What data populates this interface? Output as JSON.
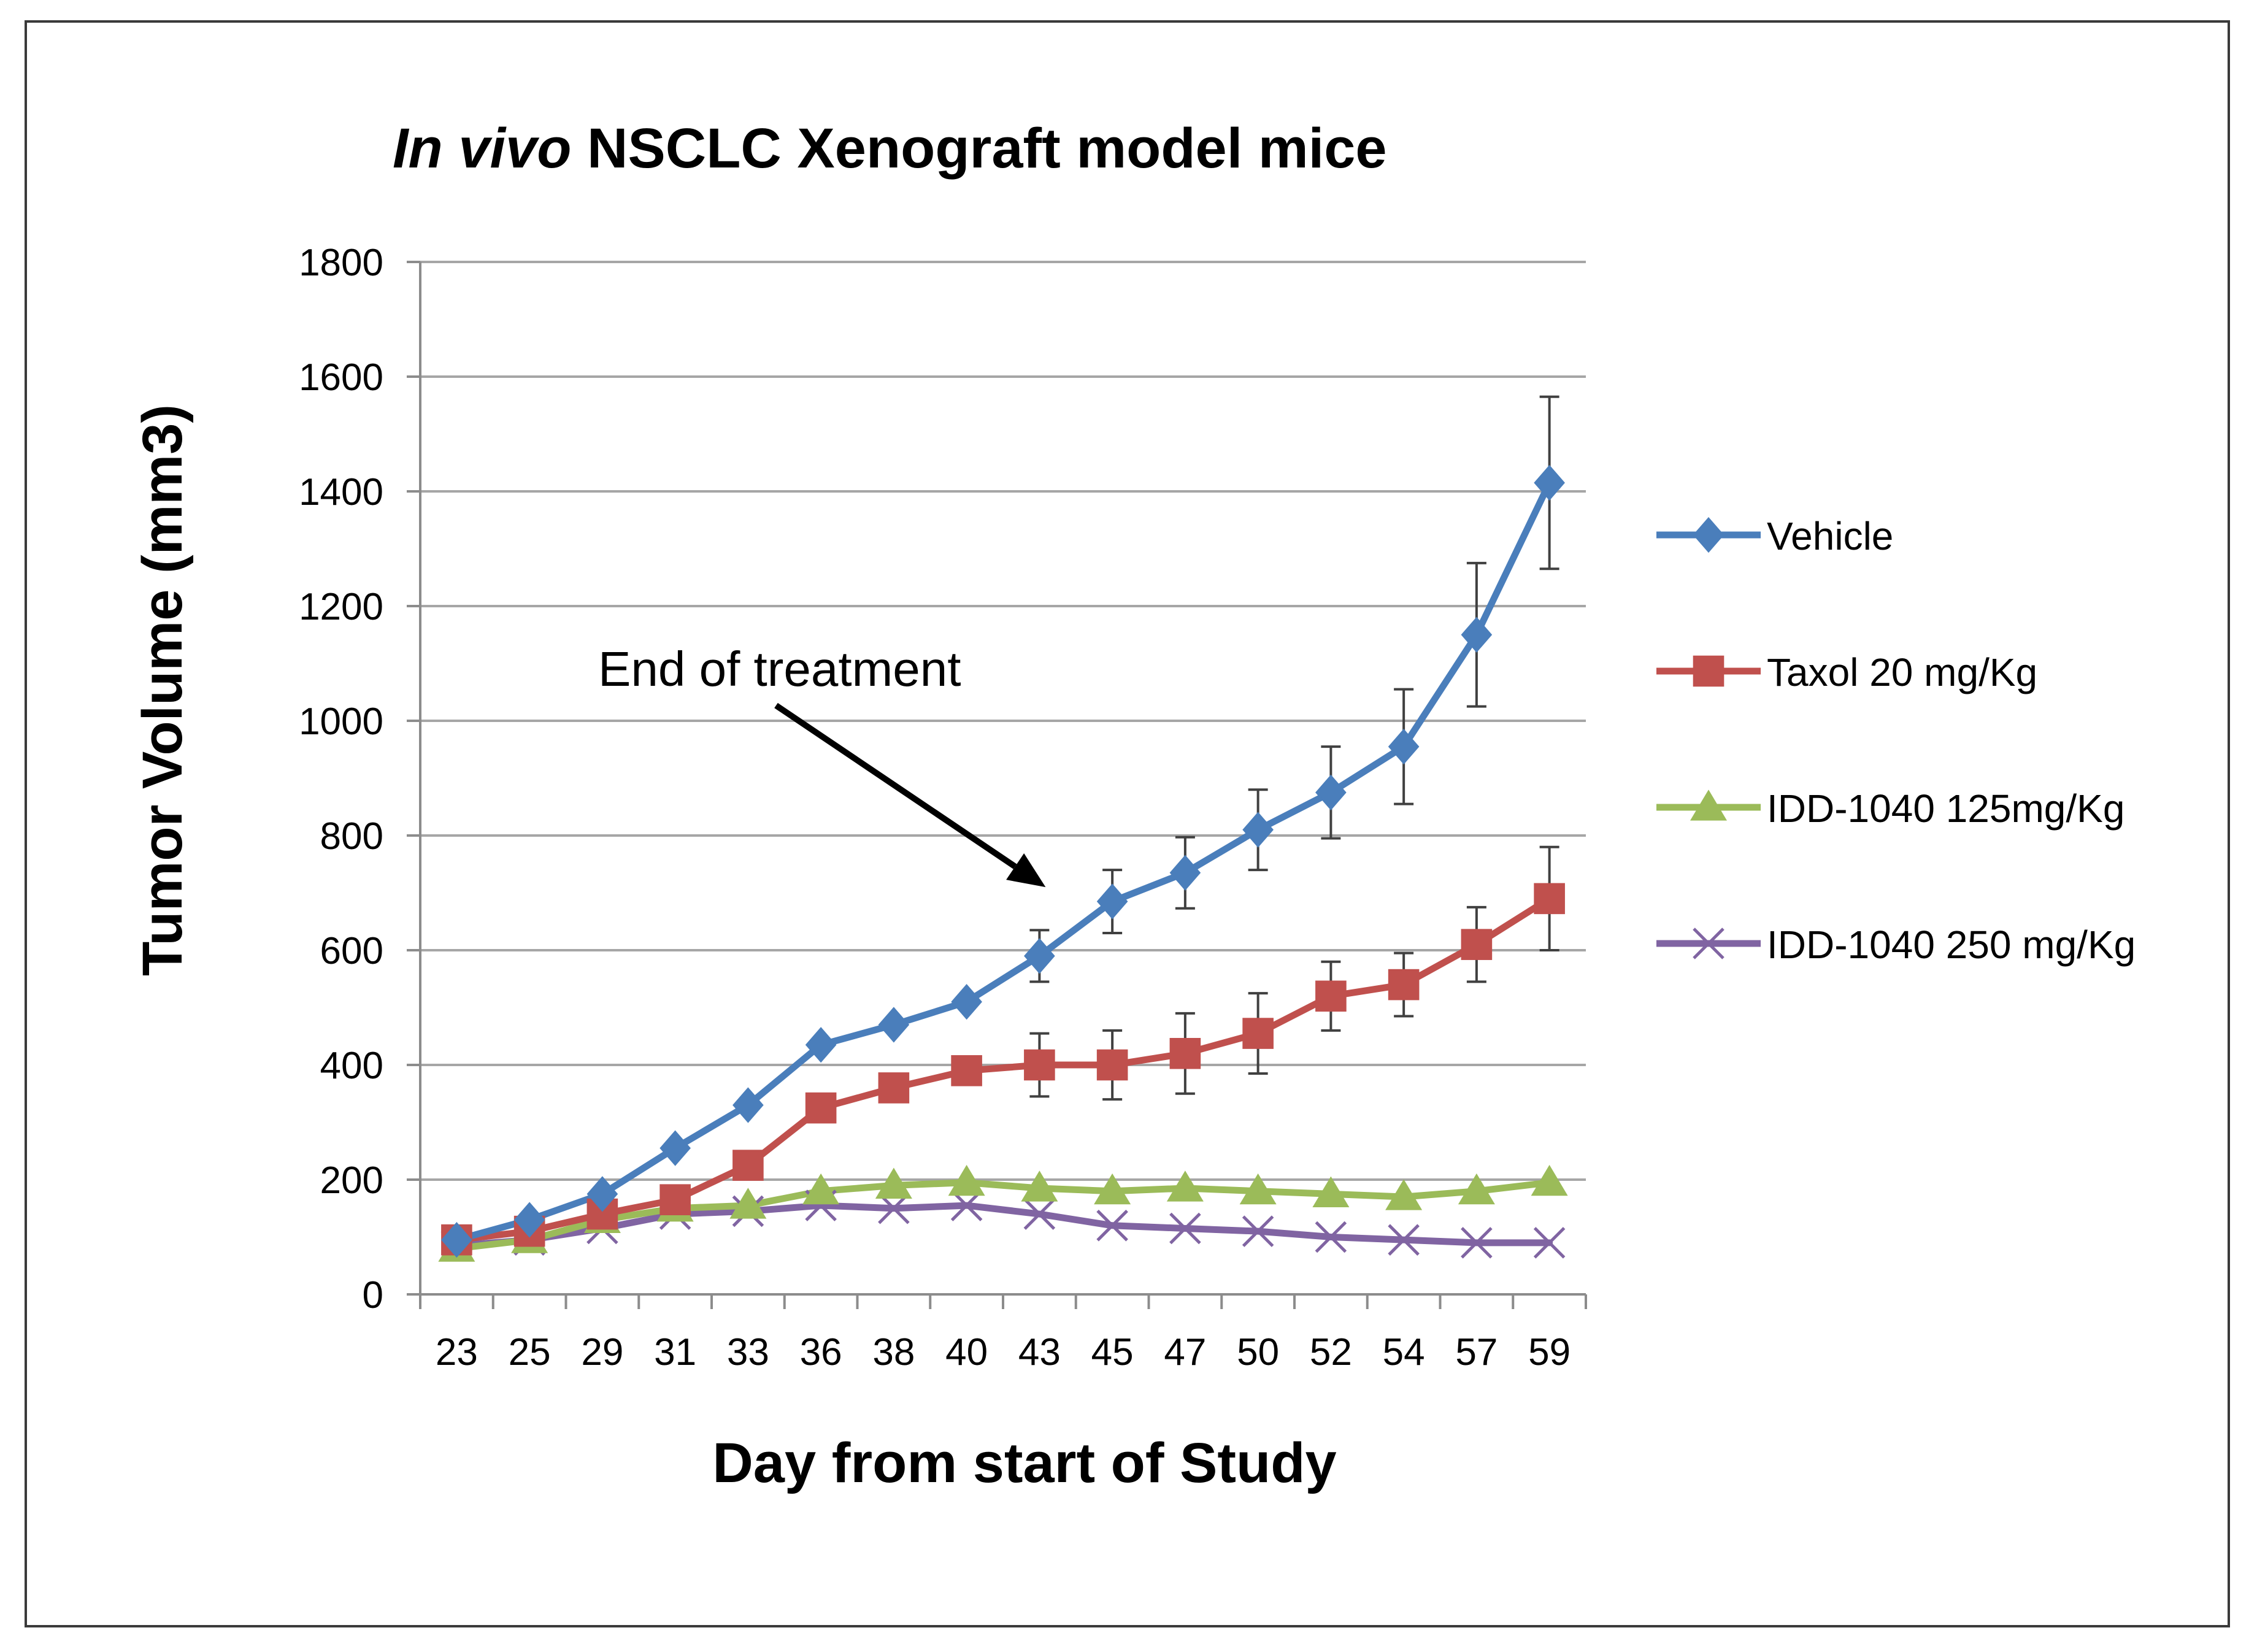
{
  "chart_data": {
    "type": "line",
    "title_italic": "In vivo",
    "title_rest": " NSCLC  Xenograft model  mice",
    "xlabel": "Day from start of Study",
    "ylabel": "Tumor Volume (mm3)",
    "ylim": [
      0,
      1800
    ],
    "yticks": [
      0,
      200,
      400,
      600,
      800,
      1000,
      1200,
      1400,
      1600,
      1800
    ],
    "grid": "horizontal",
    "legend_position": "right",
    "categories": [
      "23",
      "25",
      "29",
      "31",
      "33",
      "36",
      "38",
      "40",
      "43",
      "45",
      "47",
      "50",
      "52",
      "54",
      "57",
      "59"
    ],
    "series": [
      {
        "name": "Vehicle",
        "color": "#4a7ebb",
        "marker": "diamond",
        "values": [
          95,
          130,
          175,
          255,
          330,
          435,
          470,
          510,
          590,
          685,
          735,
          810,
          875,
          955,
          1150,
          1415
        ],
        "error": [
          0,
          0,
          0,
          0,
          0,
          0,
          0,
          0,
          45,
          55,
          62,
          70,
          80,
          100,
          125,
          150
        ]
      },
      {
        "name": "Taxol 20 mg/Kg",
        "color": "#c0504d",
        "marker": "square",
        "values": [
          95,
          110,
          140,
          165,
          225,
          325,
          360,
          390,
          400,
          400,
          420,
          455,
          520,
          540,
          610,
          690
        ],
        "error": [
          0,
          0,
          0,
          0,
          0,
          0,
          0,
          0,
          55,
          60,
          70,
          70,
          60,
          55,
          65,
          90
        ]
      },
      {
        "name": "IDD-1040 125mg/Kg",
        "color": "#9bbb59",
        "marker": "triangle",
        "values": [
          80,
          95,
          130,
          150,
          155,
          180,
          190,
          195,
          185,
          180,
          185,
          180,
          175,
          170,
          180,
          195
        ],
        "error": []
      },
      {
        "name": "IDD-1040 250 mg/Kg",
        "color": "#8064a2",
        "marker": "x",
        "values": [
          85,
          95,
          115,
          140,
          145,
          155,
          150,
          155,
          140,
          120,
          115,
          110,
          100,
          95,
          90,
          90
        ],
        "error": []
      }
    ],
    "annotations": [
      {
        "text": "End of treatment",
        "points_to_category": "43"
      }
    ]
  }
}
